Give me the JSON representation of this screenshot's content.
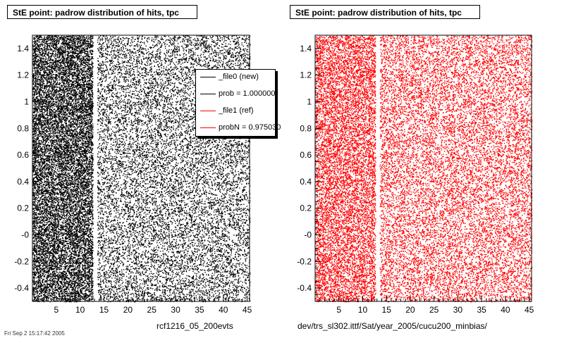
{
  "chart_data": [
    {
      "type": "scatter",
      "title": "StE point: padrow distribution of hits, tpc",
      "xlabel": "",
      "ylabel": "",
      "xlim": [
        0,
        45.5
      ],
      "ylim": [
        -0.5,
        1.5
      ],
      "x_ticks": [
        "5",
        "10",
        "15",
        "20",
        "25",
        "30",
        "35",
        "40",
        "45"
      ],
      "y_ticks": [
        "-0.4",
        "-0.2",
        "-0",
        "0.2",
        "0.4",
        "0.6",
        "0.8",
        "1",
        "1.2",
        "1.4"
      ],
      "grid": false,
      "gap_padrow": 13,
      "series": [
        {
          "name": "_file0 (new)",
          "color": "#000000",
          "density": "uniform over padrows 1-45, denser for padrows 1-13, empty at padrow 13"
        }
      ],
      "legend": {
        "placement": "top-right",
        "entries": [
          {
            "label": "_file0 (new)",
            "color": "#000000"
          },
          {
            "label": "prob = 1.000000",
            "color": "#000000"
          },
          {
            "label": "_file1 (ref)",
            "color": "#ff0000"
          },
          {
            "label": "probN = 0.975030",
            "color": "#ff0000"
          }
        ]
      },
      "footer": "rcf1216_05_200evts"
    },
    {
      "type": "scatter",
      "title": "StE point: padrow distribution of hits, tpc",
      "xlabel": "",
      "ylabel": "",
      "xlim": [
        0,
        45.5
      ],
      "ylim": [
        -0.5,
        1.5
      ],
      "x_ticks": [
        "5",
        "10",
        "15",
        "20",
        "25",
        "30",
        "35",
        "40",
        "45"
      ],
      "y_ticks": [
        "-0.4",
        "-0.2",
        "-0",
        "0.2",
        "0.4",
        "0.6",
        "0.8",
        "1",
        "1.2",
        "1.4"
      ],
      "grid": false,
      "gap_padrow": 13,
      "series": [
        {
          "name": "_file1 (ref)",
          "color": "#ff0000",
          "density": "uniform over padrows 1-45, empty at padrow 13"
        }
      ],
      "footer": "dev/trs_sl302.ittf/Sat/year_2005/cucu200_minbias/"
    }
  ],
  "timestamp": "Fri Sep 2 15:17:42 2005"
}
